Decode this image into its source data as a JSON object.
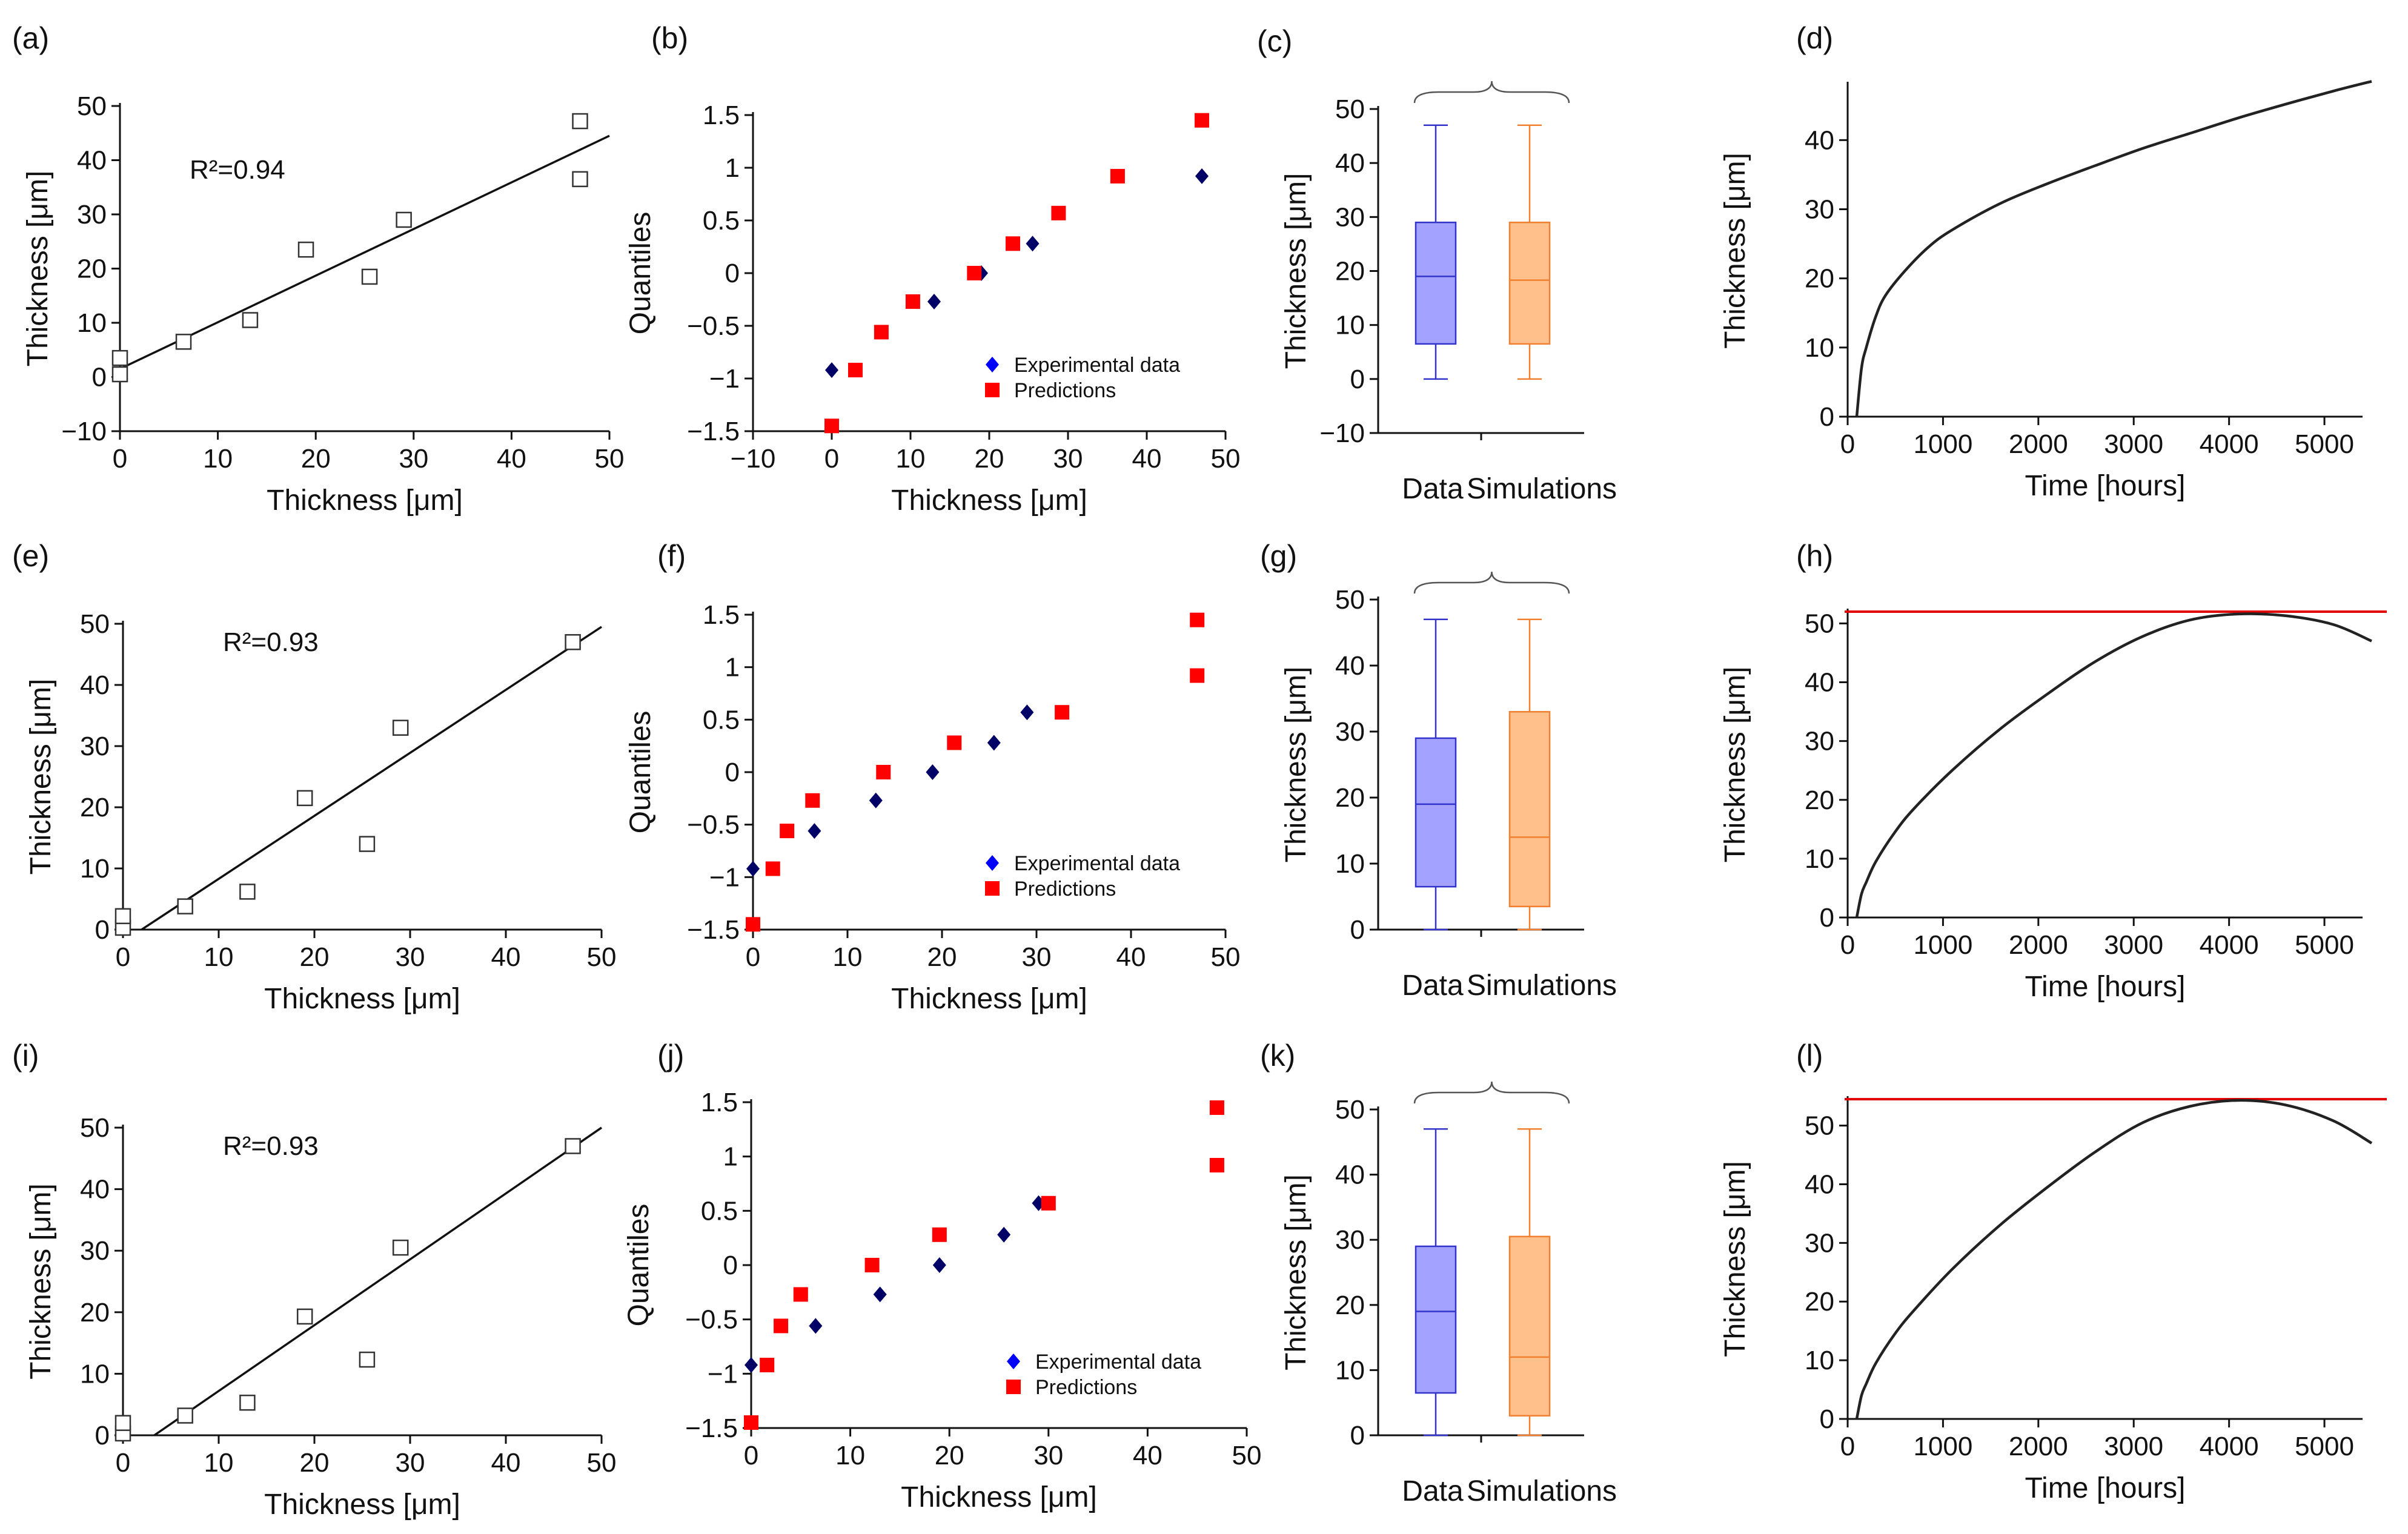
{
  "figure": {
    "panels": [
      "a",
      "b",
      "c",
      "d",
      "e",
      "f",
      "g",
      "h",
      "i",
      "j",
      "k",
      "l"
    ]
  },
  "colors": {
    "experimental": "#000066",
    "prediction": "#ff0000",
    "data_box": "#a3a3ff",
    "data_box_stroke": "#3333cc",
    "sim_box": "#ffc08c",
    "sim_box_stroke": "#f08030",
    "curve": "#222222",
    "threshold": "#e00000"
  },
  "chart_data": [
    {
      "panel": "(a)",
      "type": "scatter",
      "xlabel": "Thickness [μm]",
      "ylabel": "Thickness [μm]",
      "xlim": [
        0,
        50
      ],
      "ylim": [
        -10,
        50
      ],
      "xticks": [
        0,
        10,
        20,
        30,
        40,
        50
      ],
      "yticks": [
        -10,
        0,
        10,
        20,
        30,
        40,
        50
      ],
      "annotation": "R²=0.94",
      "points": [
        [
          0,
          0.5
        ],
        [
          0,
          3.5
        ],
        [
          6.5,
          6.5
        ],
        [
          13.3,
          10.5
        ],
        [
          19,
          23.5
        ],
        [
          25.5,
          18.5
        ],
        [
          29,
          29
        ],
        [
          47,
          47.2
        ],
        [
          47,
          36.5
        ]
      ],
      "fit": {
        "slope": 0.86,
        "intercept": 1.5
      }
    },
    {
      "panel": "(b)",
      "type": "scatter",
      "xlabel": "Thickness [μm]",
      "ylabel": "Quantiles",
      "xlim": [
        -10,
        50
      ],
      "ylim": [
        -1.5,
        1.5
      ],
      "xticks": [
        -10,
        0,
        10,
        20,
        30,
        40,
        50
      ],
      "yticks": [
        -1.5,
        -1,
        -0.5,
        0,
        0.5,
        1,
        1.5
      ],
      "legend": [
        "Experimental data",
        "Predictions"
      ],
      "series": [
        {
          "name": "Experimental data",
          "points": [
            [
              0,
              -0.92
            ],
            [
              13,
              -0.27
            ],
            [
              19,
              0
            ],
            [
              25.5,
              0.28
            ],
            [
              47,
              0.92
            ]
          ]
        },
        {
          "name": "Predictions",
          "points": [
            [
              0,
              -1.45
            ],
            [
              3,
              -0.92
            ],
            [
              6.3,
              -0.56
            ],
            [
              10.3,
              -0.27
            ],
            [
              18.1,
              0
            ],
            [
              23,
              0.28
            ],
            [
              28.8,
              0.57
            ],
            [
              36.3,
              0.92
            ],
            [
              47,
              1.45
            ]
          ]
        }
      ]
    },
    {
      "panel": "(c)",
      "type": "box",
      "ylabel": "Thickness [μm]",
      "ylim": [
        -10,
        50
      ],
      "yticks": [
        -10,
        0,
        10,
        20,
        30,
        40,
        50
      ],
      "categories": [
        "Data",
        "Simulations"
      ],
      "boxes": [
        {
          "name": "Data",
          "min": 0,
          "q1": 6.5,
          "median": 19,
          "q3": 29,
          "max": 47
        },
        {
          "name": "Simulations",
          "min": 0,
          "q1": 6.5,
          "median": 18.3,
          "q3": 29,
          "max": 47
        }
      ]
    },
    {
      "panel": "(d)",
      "type": "line",
      "xlabel": "Time [hours]",
      "ylabel": "Thickness [μm]",
      "xlim": [
        0,
        5400
      ],
      "ylim": [
        0,
        48
      ],
      "xticks": [
        0,
        1000,
        2000,
        3000,
        4000,
        5000
      ],
      "yticks": [
        0,
        10,
        20,
        30,
        40
      ],
      "x": [
        0,
        50,
        100,
        200,
        300,
        500,
        750,
        1000,
        1500,
        2000,
        2500,
        3000,
        3500,
        4000,
        4500,
        5000,
        5400
      ],
      "y": [
        0,
        7,
        10,
        14.5,
        17.5,
        21,
        24.5,
        27,
        30.8,
        33.7,
        36.3,
        38.8,
        41,
        43.2,
        45.2,
        47.1,
        48.5
      ]
    },
    {
      "panel": "(e)",
      "type": "scatter",
      "xlabel": "Thickness [μm]",
      "ylabel": "Thickness [μm]",
      "xlim": [
        0,
        50
      ],
      "ylim": [
        0,
        50
      ],
      "xticks": [
        0,
        10,
        20,
        30,
        40,
        50
      ],
      "yticks": [
        0,
        10,
        20,
        30,
        40,
        50
      ],
      "annotation": "R²=0.93",
      "points": [
        [
          0,
          0.3
        ],
        [
          0,
          2.2
        ],
        [
          6.5,
          3.8
        ],
        [
          13,
          6.2
        ],
        [
          19,
          21.5
        ],
        [
          25.5,
          14
        ],
        [
          29,
          33
        ],
        [
          47,
          47
        ]
      ],
      "fit": {
        "slope": 1.03,
        "intercept": -2.0
      }
    },
    {
      "panel": "(f)",
      "type": "scatter",
      "xlabel": "Thickness [μm]",
      "ylabel": "Quantiles",
      "xlim": [
        0,
        50
      ],
      "ylim": [
        -1.5,
        1.5
      ],
      "xticks": [
        0,
        10,
        20,
        30,
        40,
        50
      ],
      "yticks": [
        -1.5,
        -1,
        -0.5,
        0,
        0.5,
        1,
        1.5
      ],
      "legend": [
        "Experimental data",
        "Predictions"
      ],
      "series": [
        {
          "name": "Experimental data",
          "points": [
            [
              0,
              -0.92
            ],
            [
              6.5,
              -0.56
            ],
            [
              13,
              -0.27
            ],
            [
              19,
              0
            ],
            [
              25.5,
              0.28
            ],
            [
              29,
              0.57
            ]
          ]
        },
        {
          "name": "Predictions",
          "points": [
            [
              0,
              -1.45
            ],
            [
              2.1,
              -0.92
            ],
            [
              3.6,
              -0.56
            ],
            [
              6.3,
              -0.27
            ],
            [
              13.8,
              0
            ],
            [
              21.3,
              0.28
            ],
            [
              32.7,
              0.57
            ],
            [
              47,
              0.92
            ],
            [
              47,
              1.45
            ]
          ]
        }
      ]
    },
    {
      "panel": "(g)",
      "type": "box",
      "ylabel": "Thickness [μm]",
      "ylim": [
        0,
        50
      ],
      "yticks": [
        0,
        10,
        20,
        30,
        40,
        50
      ],
      "categories": [
        "Data",
        "Simulations"
      ],
      "boxes": [
        {
          "name": "Data",
          "min": 0,
          "q1": 6.5,
          "median": 19,
          "q3": 29,
          "max": 47
        },
        {
          "name": "Simulations",
          "min": 0,
          "q1": 3.5,
          "median": 14,
          "q3": 33,
          "max": 47
        }
      ]
    },
    {
      "panel": "(h)",
      "type": "line",
      "xlabel": "Time [hours]",
      "ylabel": "Thickness [μm]",
      "xlim": [
        0,
        5400
      ],
      "ylim": [
        0,
        52
      ],
      "xticks": [
        0,
        1000,
        2000,
        3000,
        4000,
        5000
      ],
      "yticks": [
        0,
        10,
        20,
        30,
        40,
        50
      ],
      "threshold": 52,
      "x": [
        0,
        50,
        100,
        200,
        400,
        600,
        1000,
        1500,
        2000,
        2500,
        3000,
        3500,
        4000,
        4500,
        5000,
        5400
      ],
      "y": [
        0,
        4,
        6,
        9.5,
        14.5,
        18.5,
        25,
        32,
        38,
        43.5,
        47.8,
        50.6,
        51.6,
        51.3,
        49.8,
        47
      ]
    },
    {
      "panel": "(i)",
      "type": "scatter",
      "xlabel": "Thickness [μm]",
      "ylabel": "Thickness [μm]",
      "xlim": [
        0,
        50
      ],
      "ylim": [
        0,
        50
      ],
      "xticks": [
        0,
        10,
        20,
        30,
        40,
        50
      ],
      "yticks": [
        0,
        10,
        20,
        30,
        40,
        50
      ],
      "annotation": "R²=0.93",
      "points": [
        [
          0,
          0.3
        ],
        [
          0,
          2
        ],
        [
          6.5,
          3.2
        ],
        [
          13,
          5.3
        ],
        [
          19,
          19.3
        ],
        [
          25.5,
          12.3
        ],
        [
          29,
          30.5
        ],
        [
          47,
          47
        ]
      ],
      "fit": {
        "slope": 1.07,
        "intercept": -3.5
      }
    },
    {
      "panel": "(j)",
      "type": "scatter",
      "xlabel": "Thickness [μm]",
      "ylabel": "Quantiles",
      "xlim": [
        0,
        50
      ],
      "ylim": [
        -1.5,
        1.5
      ],
      "xticks": [
        0,
        10,
        20,
        30,
        40,
        50
      ],
      "yticks": [
        -1.5,
        -1,
        -0.5,
        0,
        0.5,
        1,
        1.5
      ],
      "legend": [
        "Experimental data",
        "Predictions"
      ],
      "series": [
        {
          "name": "Experimental data",
          "points": [
            [
              0,
              -0.92
            ],
            [
              6.5,
              -0.56
            ],
            [
              13,
              -0.27
            ],
            [
              19,
              0
            ],
            [
              25.5,
              0.28
            ],
            [
              29,
              0.57
            ]
          ]
        },
        {
          "name": "Predictions",
          "points": [
            [
              0,
              -1.45
            ],
            [
              1.6,
              -0.92
            ],
            [
              3,
              -0.56
            ],
            [
              5,
              -0.27
            ],
            [
              12.2,
              0
            ],
            [
              19,
              0.28
            ],
            [
              30,
              0.57
            ],
            [
              47,
              0.92
            ],
            [
              47,
              1.45
            ]
          ]
        }
      ]
    },
    {
      "panel": "(k)",
      "type": "box",
      "ylabel": "Thickness [μm]",
      "ylim": [
        0,
        50
      ],
      "yticks": [
        0,
        10,
        20,
        30,
        40,
        50
      ],
      "categories": [
        "Data",
        "Simulations"
      ],
      "boxes": [
        {
          "name": "Data",
          "min": 0,
          "q1": 6.5,
          "median": 19,
          "q3": 29,
          "max": 47
        },
        {
          "name": "Simulations",
          "min": 0,
          "q1": 3,
          "median": 12,
          "q3": 30.5,
          "max": 47
        }
      ]
    },
    {
      "panel": "(l)",
      "type": "line",
      "xlabel": "Time [hours]",
      "ylabel": "Thickness [μm]",
      "xlim": [
        0,
        5400
      ],
      "ylim": [
        0,
        54.5
      ],
      "xticks": [
        0,
        1000,
        2000,
        3000,
        4000,
        5000
      ],
      "yticks": [
        0,
        10,
        20,
        30,
        40,
        50
      ],
      "threshold": 54.5,
      "x": [
        0,
        50,
        100,
        200,
        400,
        600,
        1000,
        1500,
        2000,
        2500,
        3000,
        3500,
        4000,
        4500,
        5000,
        5400
      ],
      "y": [
        0,
        4,
        6,
        9.5,
        14.5,
        18.5,
        25.5,
        33,
        39.5,
        45.5,
        50.5,
        53.3,
        54.3,
        53.5,
        50.8,
        47
      ]
    }
  ]
}
